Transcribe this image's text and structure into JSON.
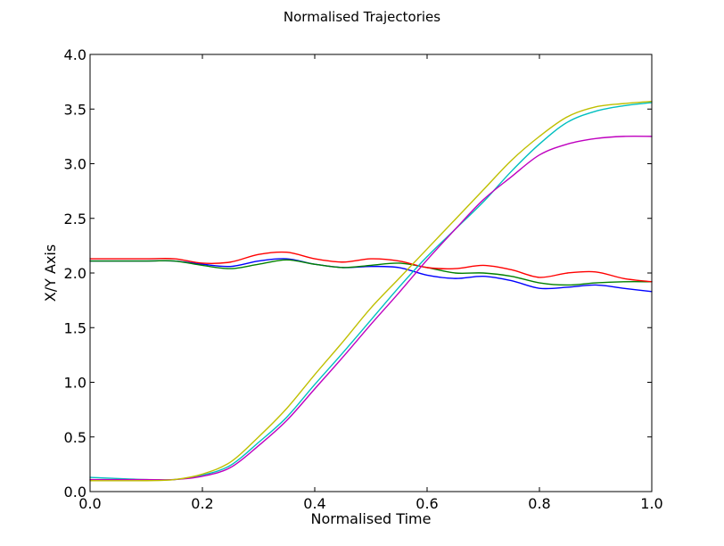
{
  "chart_data": {
    "type": "line",
    "title": "Normalised Trajectories",
    "xlabel": "Normalised Time",
    "ylabel": "X/Y Axis",
    "xlim": [
      0.0,
      1.0
    ],
    "ylim": [
      0.0,
      4.0
    ],
    "xticks": [
      0.0,
      0.2,
      0.4,
      0.6,
      0.8,
      1.0
    ],
    "xtick_labels": [
      "0.0",
      "0.2",
      "0.4",
      "0.6",
      "0.8",
      "1.0"
    ],
    "yticks": [
      0.0,
      0.5,
      1.0,
      1.5,
      2.0,
      2.5,
      3.0,
      3.5,
      4.0
    ],
    "ytick_labels": [
      "0.0",
      "0.5",
      "1.0",
      "1.5",
      "2.0",
      "2.5",
      "3.0",
      "3.5",
      "4.0"
    ],
    "grid": false,
    "legend": "none",
    "series": [
      {
        "color": "#0000ff",
        "points": [
          [
            0.0,
            2.11
          ],
          [
            0.1,
            2.11
          ],
          [
            0.15,
            2.11
          ],
          [
            0.2,
            2.08
          ],
          [
            0.25,
            2.06
          ],
          [
            0.3,
            2.11
          ],
          [
            0.35,
            2.13
          ],
          [
            0.4,
            2.08
          ],
          [
            0.45,
            2.05
          ],
          [
            0.5,
            2.06
          ],
          [
            0.55,
            2.05
          ],
          [
            0.6,
            1.98
          ],
          [
            0.65,
            1.95
          ],
          [
            0.7,
            1.97
          ],
          [
            0.75,
            1.93
          ],
          [
            0.8,
            1.86
          ],
          [
            0.85,
            1.87
          ],
          [
            0.9,
            1.89
          ],
          [
            0.95,
            1.86
          ],
          [
            1.0,
            1.83
          ]
        ]
      },
      {
        "color": "#008000",
        "points": [
          [
            0.0,
            2.11
          ],
          [
            0.1,
            2.11
          ],
          [
            0.15,
            2.11
          ],
          [
            0.2,
            2.07
          ],
          [
            0.25,
            2.04
          ],
          [
            0.3,
            2.08
          ],
          [
            0.35,
            2.12
          ],
          [
            0.4,
            2.08
          ],
          [
            0.45,
            2.05
          ],
          [
            0.5,
            2.07
          ],
          [
            0.55,
            2.09
          ],
          [
            0.6,
            2.05
          ],
          [
            0.65,
            2.0
          ],
          [
            0.7,
            2.0
          ],
          [
            0.75,
            1.97
          ],
          [
            0.8,
            1.91
          ],
          [
            0.85,
            1.89
          ],
          [
            0.9,
            1.91
          ],
          [
            0.95,
            1.92
          ],
          [
            1.0,
            1.92
          ]
        ]
      },
      {
        "color": "#ff0000",
        "points": [
          [
            0.0,
            2.13
          ],
          [
            0.1,
            2.13
          ],
          [
            0.15,
            2.13
          ],
          [
            0.2,
            2.09
          ],
          [
            0.25,
            2.1
          ],
          [
            0.3,
            2.17
          ],
          [
            0.35,
            2.19
          ],
          [
            0.4,
            2.13
          ],
          [
            0.45,
            2.1
          ],
          [
            0.5,
            2.13
          ],
          [
            0.55,
            2.11
          ],
          [
            0.6,
            2.05
          ],
          [
            0.65,
            2.04
          ],
          [
            0.7,
            2.07
          ],
          [
            0.75,
            2.03
          ],
          [
            0.8,
            1.96
          ],
          [
            0.85,
            2.0
          ],
          [
            0.9,
            2.01
          ],
          [
            0.95,
            1.95
          ],
          [
            1.0,
            1.92
          ]
        ]
      },
      {
        "color": "#00bfbf",
        "points": [
          [
            0.0,
            0.13
          ],
          [
            0.1,
            0.11
          ],
          [
            0.15,
            0.11
          ],
          [
            0.2,
            0.15
          ],
          [
            0.25,
            0.24
          ],
          [
            0.3,
            0.45
          ],
          [
            0.35,
            0.68
          ],
          [
            0.4,
            0.98
          ],
          [
            0.45,
            1.27
          ],
          [
            0.5,
            1.57
          ],
          [
            0.55,
            1.87
          ],
          [
            0.6,
            2.15
          ],
          [
            0.65,
            2.4
          ],
          [
            0.7,
            2.65
          ],
          [
            0.75,
            2.93
          ],
          [
            0.8,
            3.18
          ],
          [
            0.85,
            3.38
          ],
          [
            0.9,
            3.48
          ],
          [
            0.95,
            3.53
          ],
          [
            1.0,
            3.56
          ]
        ]
      },
      {
        "color": "#bf00bf",
        "points": [
          [
            0.0,
            0.11
          ],
          [
            0.1,
            0.11
          ],
          [
            0.15,
            0.11
          ],
          [
            0.2,
            0.14
          ],
          [
            0.25,
            0.22
          ],
          [
            0.3,
            0.42
          ],
          [
            0.35,
            0.65
          ],
          [
            0.4,
            0.94
          ],
          [
            0.45,
            1.23
          ],
          [
            0.5,
            1.53
          ],
          [
            0.55,
            1.82
          ],
          [
            0.6,
            2.12
          ],
          [
            0.65,
            2.4
          ],
          [
            0.7,
            2.67
          ],
          [
            0.75,
            2.88
          ],
          [
            0.8,
            3.08
          ],
          [
            0.85,
            3.18
          ],
          [
            0.9,
            3.23
          ],
          [
            0.95,
            3.25
          ],
          [
            1.0,
            3.25
          ]
        ]
      },
      {
        "color": "#bfbf00",
        "points": [
          [
            0.0,
            0.1
          ],
          [
            0.1,
            0.1
          ],
          [
            0.15,
            0.11
          ],
          [
            0.2,
            0.16
          ],
          [
            0.25,
            0.27
          ],
          [
            0.3,
            0.5
          ],
          [
            0.35,
            0.76
          ],
          [
            0.4,
            1.07
          ],
          [
            0.45,
            1.37
          ],
          [
            0.5,
            1.68
          ],
          [
            0.55,
            1.95
          ],
          [
            0.6,
            2.22
          ],
          [
            0.65,
            2.49
          ],
          [
            0.7,
            2.76
          ],
          [
            0.75,
            3.03
          ],
          [
            0.8,
            3.25
          ],
          [
            0.85,
            3.43
          ],
          [
            0.9,
            3.52
          ],
          [
            0.95,
            3.55
          ],
          [
            1.0,
            3.57
          ]
        ]
      }
    ]
  }
}
